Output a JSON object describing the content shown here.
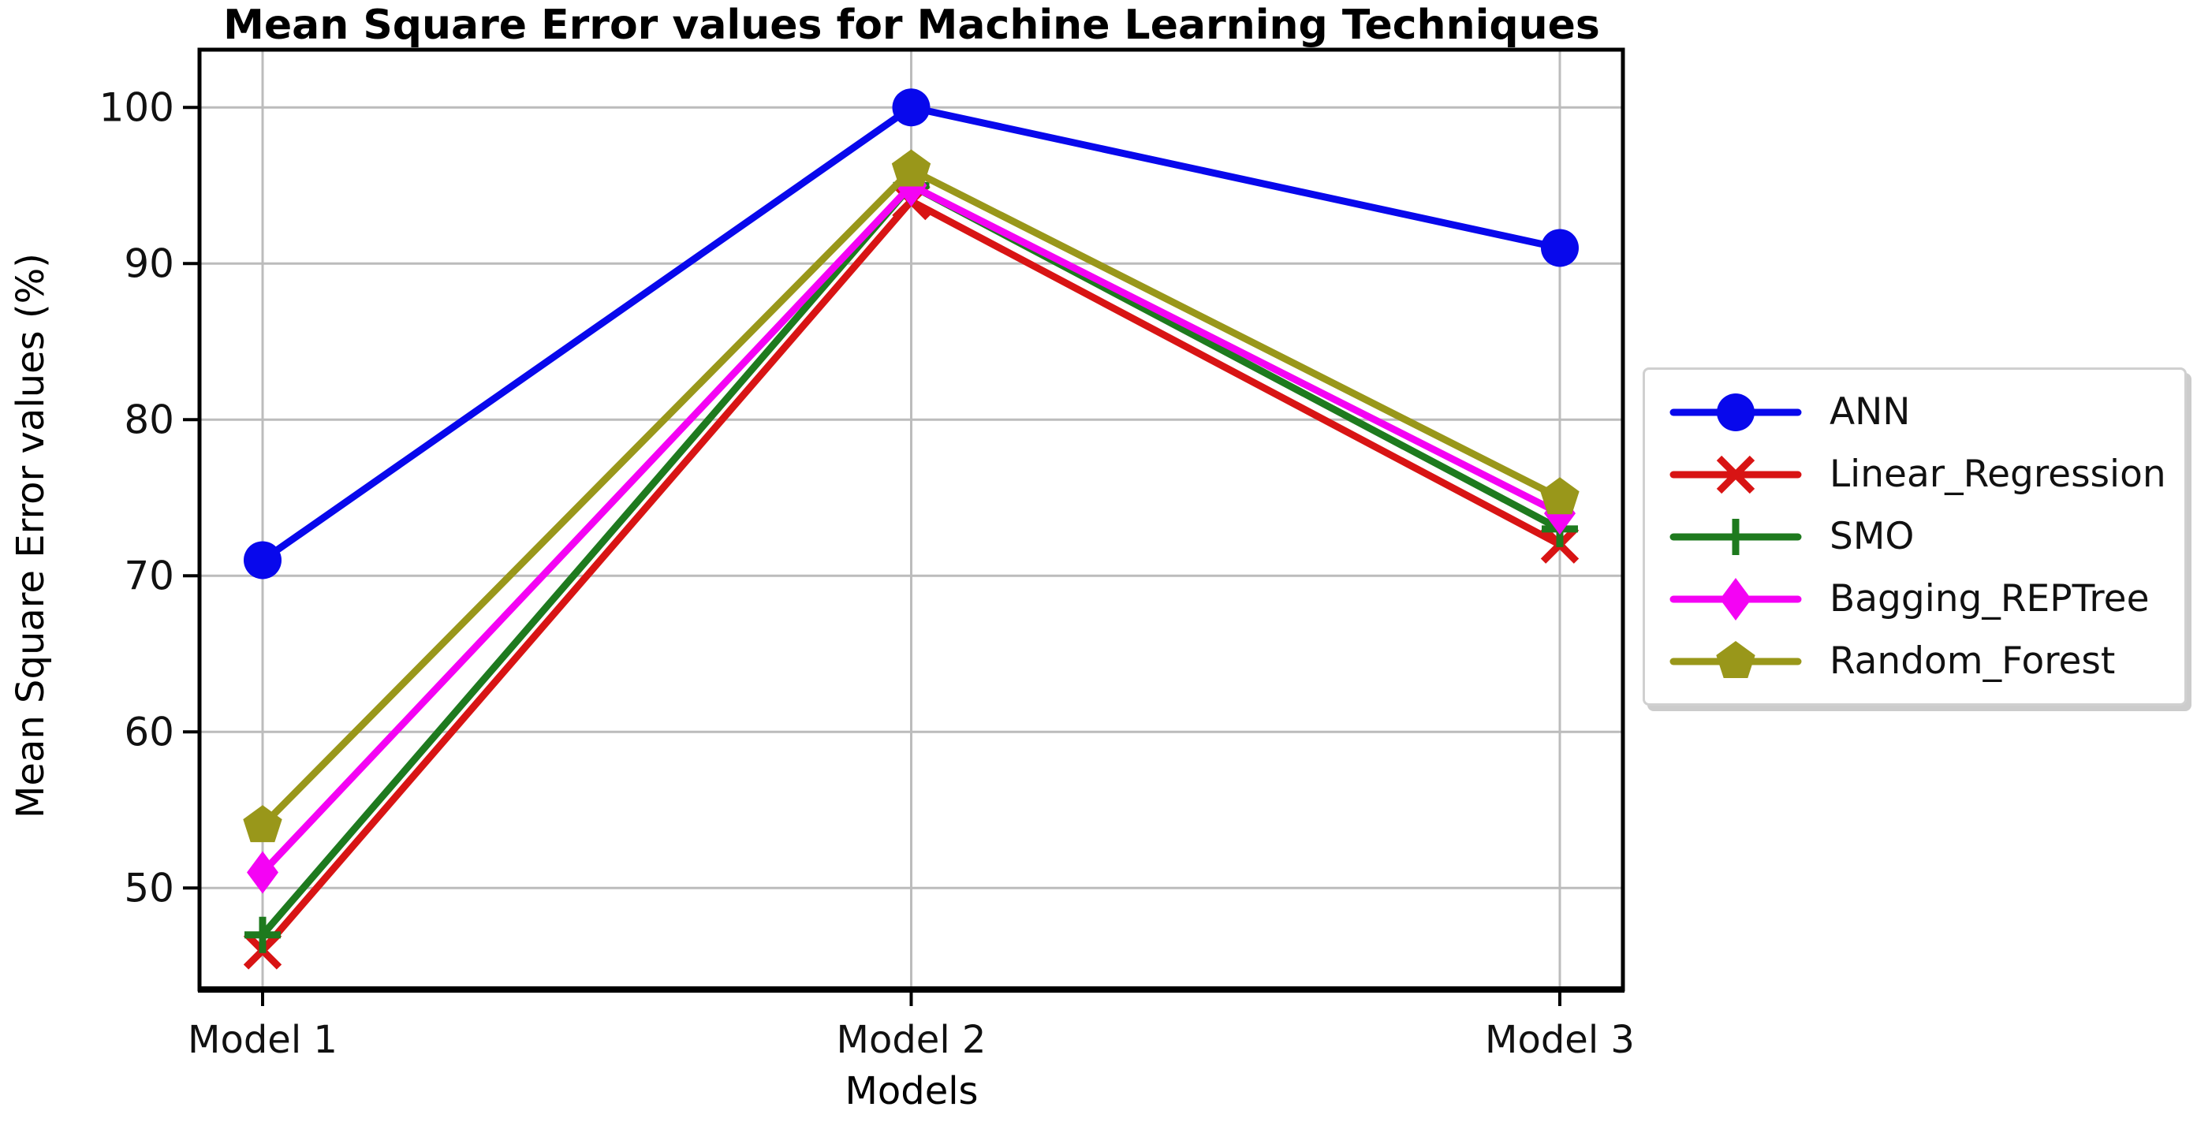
{
  "chart_data": {
    "type": "line",
    "title": "Mean Square Error values for Machine Learning Techniques",
    "xlabel": "Models",
    "ylabel": "Mean Square Error values (%)",
    "categories": [
      "Model 1",
      "Model 2",
      "Model 3"
    ],
    "yticks": [
      50,
      60,
      70,
      80,
      90,
      100
    ],
    "ylim": [
      43.5,
      103.7
    ],
    "grid": true,
    "grid_color": "#bcbcbc",
    "legend_position": "center right",
    "series": [
      {
        "name": "ANN",
        "color": "#0808ec",
        "marker": "circle",
        "values": [
          71,
          100,
          91
        ]
      },
      {
        "name": "Linear_Regression",
        "color": "#d81414",
        "marker": "x",
        "values": [
          46,
          94,
          72
        ]
      },
      {
        "name": "SMO",
        "color": "#1e7a1e",
        "marker": "plus",
        "values": [
          47,
          95,
          73
        ]
      },
      {
        "name": "Bagging_REPTree",
        "color": "#f403f4",
        "marker": "diamond",
        "values": [
          51,
          95,
          74
        ]
      },
      {
        "name": "Random_Forest",
        "color": "#99971a",
        "marker": "pentagon",
        "values": [
          54,
          96,
          75
        ]
      }
    ]
  }
}
